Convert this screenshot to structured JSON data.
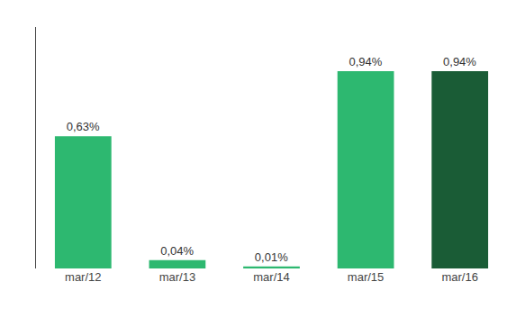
{
  "chart_data": {
    "type": "bar",
    "categories": [
      "mar/12",
      "mar/13",
      "mar/14",
      "mar/15",
      "mar/16"
    ],
    "values": [
      0.63,
      0.04,
      0.01,
      0.94,
      0.94
    ],
    "value_labels": [
      "0,63%",
      "0,04%",
      "0,01%",
      "0,94%",
      "0,94%"
    ],
    "colors": [
      "#2db870",
      "#2db870",
      "#2db870",
      "#2db870",
      "#1a5c36"
    ],
    "ylim": [
      0,
      1.15
    ],
    "grid": false,
    "data_labels": true,
    "tick_labels": "x"
  }
}
